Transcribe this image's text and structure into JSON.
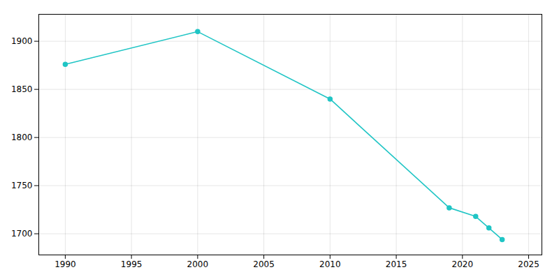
{
  "chart_data": {
    "type": "line",
    "x": [
      1990,
      2000,
      2010,
      2019,
      2021,
      2022,
      2023
    ],
    "values": [
      1876,
      1910,
      1840,
      1727,
      1718,
      1706,
      1694
    ],
    "color": "#20c5c5",
    "marker": "circle",
    "xlim": [
      1988,
      2026
    ],
    "ylim": [
      1678,
      1928
    ],
    "xticks": [
      1990,
      1995,
      2000,
      2005,
      2010,
      2015,
      2020,
      2025
    ],
    "yticks": [
      1700,
      1750,
      1800,
      1850,
      1900
    ],
    "grid": true
  }
}
